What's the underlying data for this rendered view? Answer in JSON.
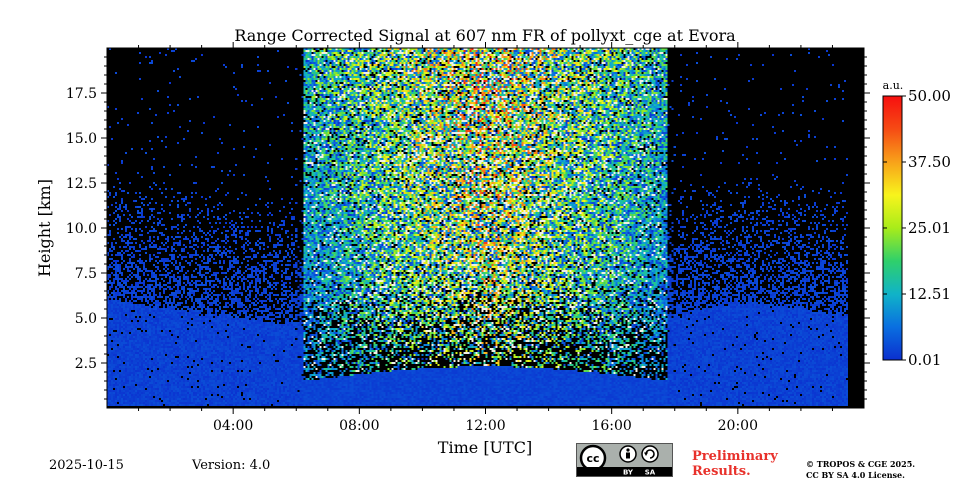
{
  "chart_data": {
    "type": "heatmap",
    "title": "Range Corrected Signal at 607 nm FR of pollyxt_cge at Evora",
    "xlabel": "Time [UTC]",
    "ylabel": "Height [km]",
    "xlim": [
      "00:00",
      "24:00"
    ],
    "ylim": [
      0,
      20
    ],
    "x_ticks": [
      "04:00",
      "08:00",
      "12:00",
      "16:00",
      "20:00"
    ],
    "y_ticks": [
      "2.5",
      "5.0",
      "7.5",
      "10.0",
      "12.5",
      "15.0",
      "17.5"
    ],
    "colorbar": {
      "unit": "a.u.",
      "ticks": [
        "0.01",
        "12.51",
        "25.01",
        "37.50",
        "50.00"
      ],
      "range": [
        0.01,
        50.0
      ],
      "colormap": [
        "#0b2fcf",
        "#0a6fe0",
        "#10b3c8",
        "#2fd06b",
        "#a8ec1a",
        "#f8f41c",
        "#f8a21a",
        "#f64b14",
        "#f70f0f"
      ]
    },
    "description_features": {
      "daylight_noise_band_utc": [
        "06:15",
        "17:45"
      ],
      "boundary_layer_top_km_morning": 4.5,
      "boundary_layer_top_km_evening": 5.5,
      "data_end_utc": "23:30"
    }
  },
  "footer": {
    "date": "2025-10-15",
    "version": "Version: 4.0",
    "cc_by": "BY",
    "cc_sa": "SA",
    "cc_logo": "cc",
    "preliminary_line1": "Preliminary",
    "preliminary_line2": "Results.",
    "copyright_line1": "© TROPOS & CGE 2025.",
    "copyright_line2": "CC BY SA 4.0 License."
  },
  "colors": {
    "accent_red": "#e8312b",
    "no_data": "#000000"
  },
  "icons": [
    "creative-commons-icon",
    "attribution-person-icon",
    "share-alike-icon"
  ]
}
